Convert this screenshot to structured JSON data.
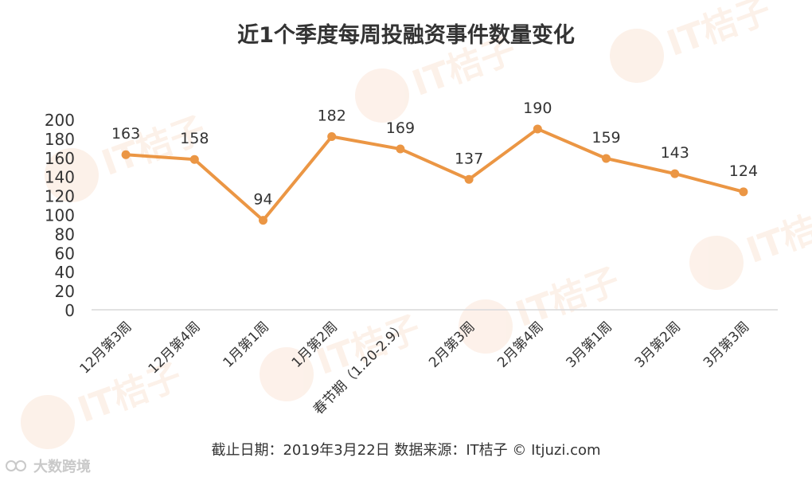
{
  "title": "近1个季度每周投融资事件数量变化",
  "footer": "截止日期：2019年3月22日    数据来源：IT桔子 © Itjuzi.com",
  "brand": "大数跨境",
  "watermark": "IT桔子",
  "colors": {
    "line": "#EB9644",
    "axis": "#d9d9d9",
    "text": "#333333",
    "watermark": "#fbe6d8"
  },
  "chart_data": {
    "type": "line",
    "categories": [
      "12月第3周",
      "12月第4周",
      "1月第1周",
      "1月第2周",
      "春节期（1.20-2.9）",
      "2月第3周",
      "2月第4周",
      "3月第1周",
      "3月第2周",
      "3月第3周"
    ],
    "series": [
      {
        "values": [
          163,
          158,
          94,
          182,
          169,
          137,
          190,
          159,
          143,
          124
        ]
      }
    ],
    "ylim": [
      0,
      200
    ],
    "yticks": [
      0,
      20,
      40,
      60,
      80,
      100,
      120,
      140,
      160,
      180,
      200
    ],
    "grid": false,
    "data_labels": true,
    "legend": "none"
  }
}
